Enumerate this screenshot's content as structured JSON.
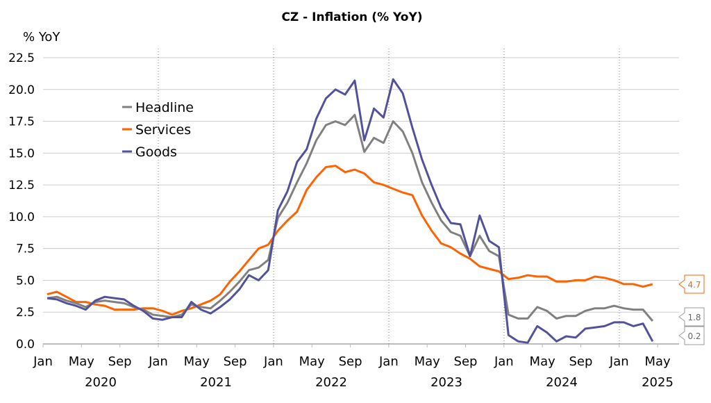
{
  "chart_data": {
    "type": "line",
    "title": "CZ - Inflation (% YoY)",
    "ylabel": "% YoY",
    "ylim": [
      0,
      22.5
    ],
    "yticks": [
      "0.0",
      "2.5",
      "5.0",
      "7.5",
      "10.0",
      "12.5",
      "15.0",
      "17.5",
      "20.0",
      "22.5"
    ],
    "x_start": "2020-01",
    "x_end": "2025-04",
    "month_ticks": [
      "Jan",
      "May",
      "Sep",
      "Jan",
      "May",
      "Sep",
      "Jan",
      "May",
      "Sep",
      "Jan",
      "May",
      "Sep",
      "Jan",
      "May",
      "Sep",
      "Jan",
      "May"
    ],
    "year_ticks": [
      "2020",
      "2021",
      "2022",
      "2023",
      "2024",
      "2025"
    ],
    "grid": "horizontal",
    "legend_placement": "top-left",
    "series": [
      {
        "name": "Headline",
        "color": "#808080",
        "end_label": "1.8",
        "values": [
          3.6,
          3.7,
          3.4,
          3.2,
          2.9,
          3.3,
          3.4,
          3.3,
          3.2,
          2.9,
          2.7,
          2.3,
          2.2,
          2.1,
          2.3,
          3.1,
          2.9,
          2.8,
          3.4,
          4.1,
          4.9,
          5.8,
          6.0,
          6.6,
          9.9,
          11.1,
          12.7,
          14.2,
          16.0,
          17.2,
          17.5,
          17.2,
          18.0,
          15.1,
          16.2,
          15.8,
          17.5,
          16.7,
          15.0,
          12.7,
          11.1,
          9.7,
          8.8,
          8.5,
          6.9,
          8.5,
          7.3,
          6.9,
          2.3,
          2.0,
          2.0,
          2.9,
          2.6,
          2.0,
          2.2,
          2.2,
          2.6,
          2.8,
          2.8,
          3.0,
          2.8,
          2.7,
          2.7,
          1.8
        ]
      },
      {
        "name": "Services",
        "color": "#FF6200",
        "end_label": "4.7",
        "values": [
          3.9,
          4.1,
          3.7,
          3.3,
          3.3,
          3.1,
          3.0,
          2.7,
          2.7,
          2.7,
          2.8,
          2.8,
          2.6,
          2.3,
          2.6,
          2.8,
          3.1,
          3.4,
          3.9,
          4.9,
          5.7,
          6.6,
          7.5,
          7.8,
          8.9,
          9.7,
          10.4,
          12.1,
          13.1,
          13.9,
          14.0,
          13.5,
          13.7,
          13.4,
          12.7,
          12.5,
          12.2,
          11.9,
          11.7,
          10.1,
          8.9,
          7.9,
          7.6,
          7.1,
          6.7,
          6.1,
          5.9,
          5.7,
          5.1,
          5.2,
          5.4,
          5.3,
          5.3,
          4.9,
          4.9,
          5.0,
          5.0,
          5.3,
          5.2,
          5.0,
          4.7,
          4.7,
          4.5,
          4.7
        ]
      },
      {
        "name": "Goods",
        "color": "#525199",
        "end_label": "0.2",
        "values": [
          3.6,
          3.5,
          3.2,
          3.0,
          2.7,
          3.4,
          3.7,
          3.6,
          3.5,
          3.0,
          2.6,
          2.0,
          1.9,
          2.1,
          2.1,
          3.3,
          2.7,
          2.4,
          2.9,
          3.5,
          4.3,
          5.4,
          5.0,
          5.8,
          10.5,
          12.0,
          14.3,
          15.3,
          17.7,
          19.3,
          20.0,
          19.6,
          20.7,
          16.0,
          18.5,
          17.8,
          20.8,
          19.7,
          17.0,
          14.5,
          12.5,
          10.7,
          9.5,
          9.4,
          6.9,
          10.1,
          8.1,
          7.6,
          0.7,
          0.2,
          0.1,
          1.4,
          0.9,
          0.2,
          0.6,
          0.5,
          1.2,
          1.3,
          1.4,
          1.7,
          1.7,
          1.4,
          1.6,
          0.2
        ]
      }
    ]
  }
}
